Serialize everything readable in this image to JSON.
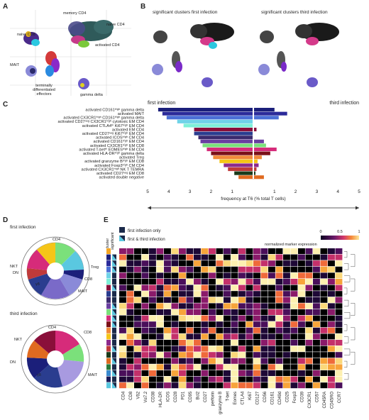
{
  "panels": {
    "A": {
      "letter": "A",
      "labels": [
        "naive CD8",
        "memory CD4",
        "naive CD4",
        "activated CD4",
        "MAIT",
        "terminally differentiated effectors",
        "gamma delta"
      ]
    },
    "B": {
      "letter": "B",
      "titles": [
        "significant clusters first infection",
        "significant clusters third infection"
      ]
    },
    "C": {
      "letter": "C",
      "left_title": "first infection",
      "right_title": "third infection",
      "xlabel": "frequency at T6 (% total T cells)"
    },
    "D": {
      "letter": "D",
      "first_title": "first infection",
      "third_title": "third infection",
      "first_labels": [
        "CD4",
        "NKT",
        "DN",
        "Treg",
        "CD8",
        "MAIT",
        "γδ"
      ],
      "third_labels": [
        "CD4",
        "CD8",
        "NKT",
        "DN",
        "MAIT",
        "γδ"
      ]
    },
    "E": {
      "letter": "E",
      "col_headers": [
        "cluster",
        "significant"
      ],
      "legend_first_only": "first infection only",
      "legend_first_third": "first & third infection",
      "colorbar_title": "normalized marker expression",
      "colorbar_ticks": [
        "0",
        "0.5",
        "1"
      ]
    }
  },
  "chart_data": {
    "type": "bar",
    "categories": [
      "activated CD161ʰⁱᵍʰ gamma delta",
      "activated MAIT",
      "activated CX3CR1ʰⁱᵍʰ CD161ʰⁱᵍʰ gamma delta",
      "activated CD27ⁿᵉᵍ CX3CR1ʰⁱᵍʰ cytotoxic EM CD4",
      "activated CTLA4ʰⁱ Ki67ʰⁱᵍʰ EM CD4",
      "activated EM CD4",
      "activated CD27ⁿᵉᵍ Ki67ʰⁱᵍʰ EM CD4",
      "activated ICOSʰⁱᵍʰ CM CD4",
      "activated CD161ʰⁱᵍʰ EM CD4",
      "activated CX3CR1ʰⁱᵍʰ EM CD8",
      "activated T-betʰⁱ EOMESʰⁱᵍʰ EM CD4",
      "activated HLA-DRʰⁱᵍʰ gamma delta",
      "activated Treg",
      "activated granzyme Bʰⁱᵍʰ EM CD8",
      "activated Foxp3ʰⁱᵍʰ CM CD4",
      "activated CX3CR1ʰⁱᵍʰ NK T TEMRA",
      "activated CD27ⁿᵉᵍ EM CD8",
      "activated double negative"
    ],
    "colors": [
      "#1b1f7a",
      "#2b2a9a",
      "#4c6fd6",
      "#6fd3e8",
      "#7ef0d8",
      "#8a0f3a",
      "#2a3d8f",
      "#3a2a6e",
      "#6a3fa0",
      "#7be07b",
      "#d62b7a",
      "#7a1018",
      "#f08a3a",
      "#f5c518",
      "#8c2a8c",
      "#c03a3a",
      "#1a3a1a",
      "#e06a20"
    ],
    "series": [
      {
        "name": "first infection",
        "values": [
          4.5,
          4.3,
          4.1,
          3.6,
          3.3,
          2.8,
          2.8,
          2.6,
          2.5,
          2.4,
          2.2,
          2.0,
          1.9,
          1.6,
          1.4,
          1.2,
          0.9,
          0.7
        ]
      },
      {
        "name": "third infection",
        "values": [
          1.0,
          1.6,
          1.2,
          0,
          0,
          0.15,
          0,
          0,
          0.5,
          0.6,
          1.1,
          0.8,
          0.4,
          0.2,
          0.25,
          0.15,
          0.1,
          0.5
        ]
      }
    ],
    "xlim_left": [
      5,
      0
    ],
    "xlim_right": [
      0,
      5
    ],
    "ticks_left": [
      "5",
      "4",
      "3",
      "2",
      "1"
    ],
    "ticks_right": [
      "1",
      "2",
      "3",
      "4",
      "5"
    ]
  },
  "heatmap": {
    "markers": [
      "CD4",
      "CD8",
      "Vδ2",
      "Vα7.2",
      "CD38",
      "HLA-DR",
      "ICOS",
      "CD28",
      "PD1",
      "CD95",
      "Bcl2",
      "CD27",
      "perforin",
      "granzyme B",
      "T-bet",
      "Eomes",
      "CTLA4",
      "Ki67",
      "CD127",
      "CD56",
      "CD161",
      "CD49d",
      "CD25",
      "Foxp3",
      "CD39",
      "CX3CR1",
      "CD57",
      "CD45RA",
      "CD45RO",
      "CCR7"
    ],
    "cluster_colors": [
      "#f5a623",
      "#1b1f7a",
      "#2b2a9a",
      "#4c6fd6",
      "#6fd3e8",
      "#7ef0d8",
      "#8a0f3a",
      "#2a3d8f",
      "#3a2a6e",
      "#6a3fa0",
      "#7be07b",
      "#d62b7a",
      "#7a1018",
      "#f08a3a",
      "#f5c518",
      "#8c2a8c",
      "#c03a3a",
      "#1a3a1a",
      "#e06a20",
      "#2a7a3a",
      "#3a8acf",
      "#1a1a5a",
      "#5ac8e0"
    ],
    "significant": [
      "none",
      "both",
      "both",
      "both",
      "first",
      "first",
      "both",
      "first",
      "first",
      "both",
      "both",
      "both",
      "both",
      "first",
      "first",
      "first",
      "both",
      "first",
      "both",
      "first",
      "both",
      "first",
      "both"
    ]
  }
}
